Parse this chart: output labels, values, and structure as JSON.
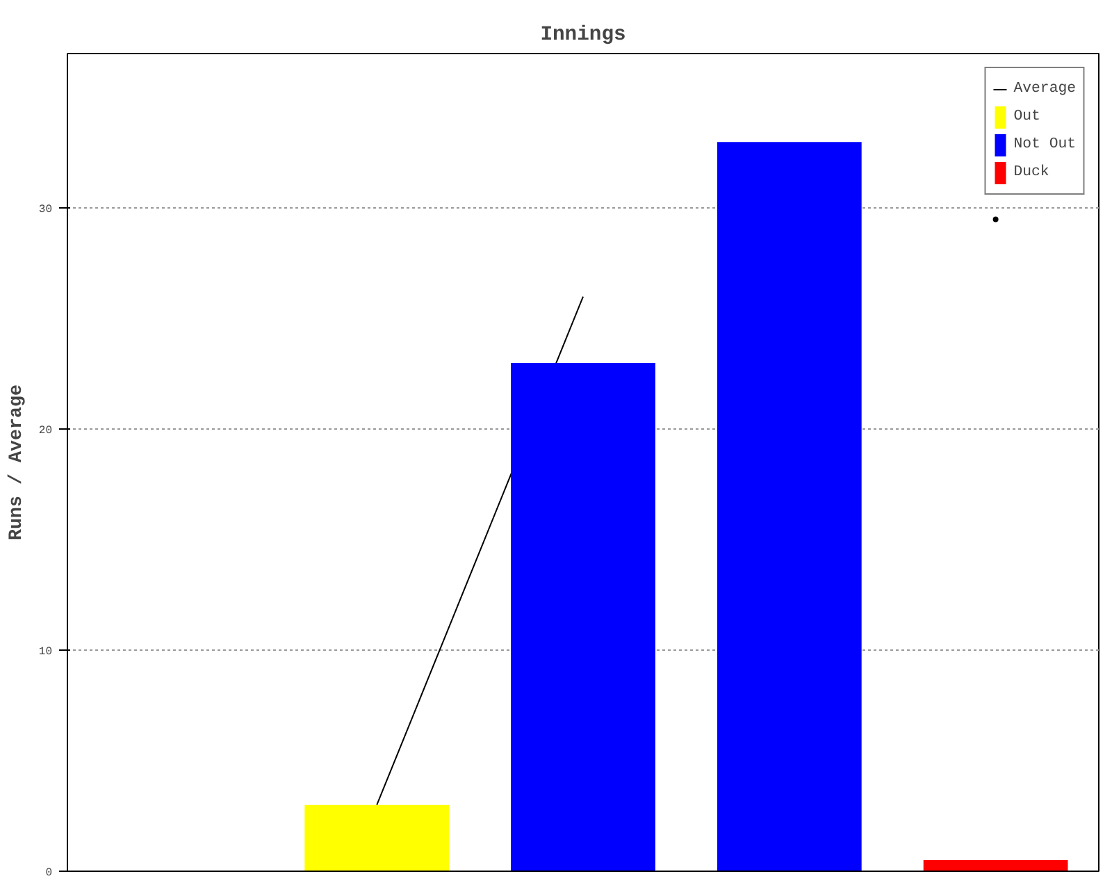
{
  "chart_data": {
    "type": "bar",
    "title": "Innings",
    "ylabel": "Runs / Average",
    "categories": [
      null,
      null,
      null,
      null,
      null
    ],
    "series": [
      {
        "name": "Average",
        "type": "line",
        "color": "#000000",
        "values": [
          null,
          3,
          26,
          null,
          29.5
        ]
      },
      {
        "name": "Out",
        "color": "#ffff00",
        "values": [
          null,
          3,
          null,
          null,
          null
        ]
      },
      {
        "name": "Not Out",
        "color": "#0000ff",
        "values": [
          null,
          null,
          23,
          33,
          null
        ]
      },
      {
        "name": "Duck",
        "color": "#ff0000",
        "values": [
          null,
          null,
          null,
          null,
          0.5
        ]
      }
    ],
    "ylim": [
      0,
      37
    ],
    "yticks": [
      0,
      10,
      20,
      30
    ],
    "grid": "y",
    "legend": "top right"
  }
}
